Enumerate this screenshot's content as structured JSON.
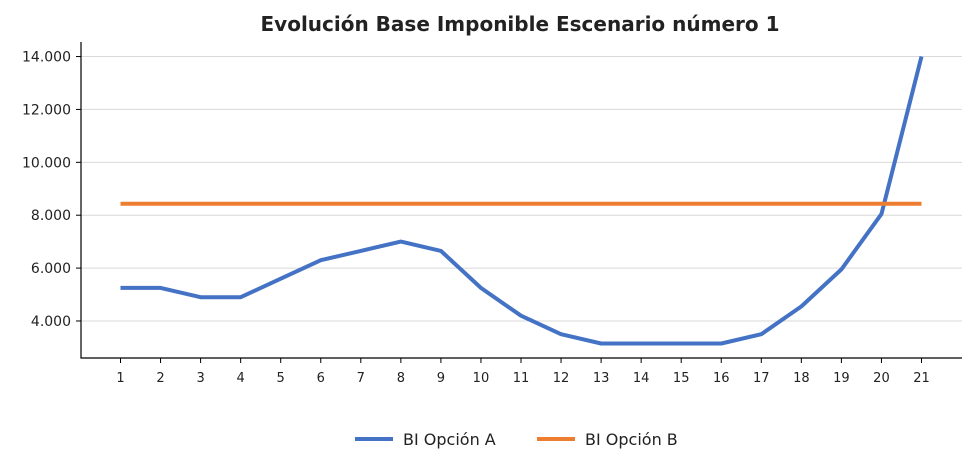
{
  "chart_data": {
    "type": "line",
    "title": "Evolución Base Imponible Escenario número 1",
    "xlabel": "",
    "ylabel": "",
    "categories": [
      "1",
      "2",
      "3",
      "4",
      "5",
      "6",
      "7",
      "8",
      "9",
      "10",
      "11",
      "12",
      "13",
      "14",
      "15",
      "16",
      "17",
      "18",
      "19",
      "20",
      "21"
    ],
    "series": [
      {
        "name": "BI Opción A",
        "color": "#4472C4",
        "values": [
          5250,
          5250,
          4900,
          4900,
          5600,
          6300,
          6650,
          7000,
          6650,
          5250,
          4200,
          3500,
          3150,
          3150,
          3150,
          3150,
          3500,
          4550,
          5950,
          8050,
          14000
        ]
      },
      {
        "name": "BI Opción B",
        "color": "#ED7D31",
        "values": [
          8430,
          8430,
          8430,
          8430,
          8430,
          8430,
          8430,
          8430,
          8430,
          8430,
          8430,
          8430,
          8430,
          8430,
          8430,
          8430,
          8430,
          8430,
          8430,
          8430,
          8430
        ]
      }
    ],
    "yticks": [
      4000,
      6000,
      8000,
      10000,
      12000,
      14000
    ],
    "ytick_labels": [
      "4.000",
      "6.000",
      "8.000",
      "10.000",
      "12.000",
      "14.000"
    ],
    "ylim": [
      2600,
      14550
    ],
    "grid": true,
    "legend_position": "bottom-center"
  }
}
